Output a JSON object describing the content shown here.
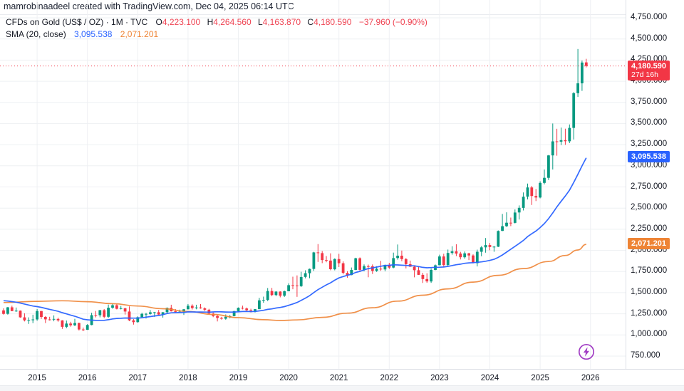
{
  "watermark": "mamrobinaadeel created with TradingView.com, Dec 04, 2025 06:14 UTC",
  "legend": {
    "symbol_title": "CFDs on Gold (US$ / OZ) · 1M · TVC",
    "open_label": "O",
    "open": "4,223.100",
    "high_label": "H",
    "high": "4,264.560",
    "low_label": "L",
    "low": "4,163.870",
    "close_label": "C",
    "close": "4,180.590",
    "change": "−37.960 (−0.90%)",
    "indicator_title": "SMA (20, close)",
    "sma_fast_value": "3,095.538",
    "sma_slow_value": "2,071.201"
  },
  "price_axis": {
    "labels": [
      "4,750.000",
      "4,500.000",
      "4,250.000",
      "4,000.000",
      "3,750.000",
      "3,500.000",
      "3,250.000",
      "3,000.000",
      "2,750.000",
      "2,500.000",
      "2,250.000",
      "2,000.000",
      "1,750.000",
      "1,500.000",
      "1,250.000",
      "1,000.000",
      "750.000"
    ],
    "last_price_label": "4,180.590",
    "countdown": "27d 16h",
    "sma_fast_label": "3,095.538",
    "sma_slow_label": "2,071.201"
  },
  "time_axis": {
    "years": [
      "2015",
      "2016",
      "2017",
      "2018",
      "2019",
      "2020",
      "2021",
      "2022",
      "2023",
      "2024",
      "2025",
      "2026"
    ]
  },
  "colors": {
    "up": "#089981",
    "down": "#f23645",
    "sma_fast": "#2962ff",
    "sma_slow": "#ee8435",
    "grid": "#eef0f3",
    "axis_text": "#131722",
    "badge_last": "#f23645",
    "badge_fast": "#2962ff",
    "badge_slow": "#ee8435",
    "flash_icon": "#a13dc4"
  },
  "chart_data": {
    "type": "candlestick",
    "symbol": "CFDs on Gold (US$ / OZ)",
    "interval": "1M",
    "exchange": "TVC",
    "start_month": "2014-05",
    "end_month": "2025-12",
    "last_price": 4180.59,
    "last_change": -37.96,
    "last_change_pct": -0.9,
    "y_axis": {
      "min": 750,
      "max": 4750,
      "step": 250
    },
    "x_axis_year_ticks": [
      2015,
      2016,
      2017,
      2018,
      2019,
      2020,
      2021,
      2022,
      2023,
      2024,
      2025,
      2026
    ],
    "grid": true,
    "price_line_style": "dotted",
    "ohlc": [
      [
        1291,
        1315,
        1241,
        1250
      ],
      [
        1250,
        1330,
        1240,
        1327
      ],
      [
        1327,
        1346,
        1281,
        1282
      ],
      [
        1282,
        1324,
        1273,
        1287
      ],
      [
        1287,
        1290,
        1204,
        1208
      ],
      [
        1208,
        1256,
        1160,
        1173
      ],
      [
        1173,
        1208,
        1131,
        1175
      ],
      [
        1175,
        1239,
        1140,
        1184
      ],
      [
        1184,
        1307,
        1168,
        1283
      ],
      [
        1283,
        1285,
        1190,
        1213
      ],
      [
        1213,
        1223,
        1141,
        1184
      ],
      [
        1184,
        1215,
        1170,
        1182
      ],
      [
        1182,
        1232,
        1162,
        1190
      ],
      [
        1190,
        1205,
        1157,
        1172
      ],
      [
        1172,
        1175,
        1072,
        1096
      ],
      [
        1096,
        1170,
        1080,
        1135
      ],
      [
        1135,
        1156,
        1098,
        1115
      ],
      [
        1115,
        1191,
        1104,
        1142
      ],
      [
        1142,
        1146,
        1052,
        1065
      ],
      [
        1065,
        1088,
        1046,
        1061
      ],
      [
        1061,
        1128,
        1060,
        1118
      ],
      [
        1118,
        1263,
        1115,
        1234
      ],
      [
        1234,
        1284,
        1208,
        1233
      ],
      [
        1233,
        1296,
        1208,
        1293
      ],
      [
        1293,
        1306,
        1199,
        1215
      ],
      [
        1215,
        1359,
        1201,
        1322
      ],
      [
        1322,
        1375,
        1310,
        1351
      ],
      [
        1351,
        1367,
        1302,
        1309
      ],
      [
        1309,
        1344,
        1302,
        1316
      ],
      [
        1316,
        1321,
        1241,
        1277
      ],
      [
        1277,
        1338,
        1163,
        1173
      ],
      [
        1173,
        1188,
        1122,
        1152
      ],
      [
        1152,
        1220,
        1146,
        1210
      ],
      [
        1210,
        1264,
        1205,
        1249
      ],
      [
        1249,
        1261,
        1195,
        1249
      ],
      [
        1249,
        1295,
        1240,
        1268
      ],
      [
        1268,
        1273,
        1214,
        1269
      ],
      [
        1269,
        1296,
        1236,
        1242
      ],
      [
        1242,
        1270,
        1205,
        1269
      ],
      [
        1269,
        1325,
        1251,
        1321
      ],
      [
        1321,
        1357,
        1277,
        1280
      ],
      [
        1280,
        1306,
        1261,
        1271
      ],
      [
        1271,
        1299,
        1263,
        1275
      ],
      [
        1275,
        1307,
        1236,
        1303
      ],
      [
        1303,
        1366,
        1302,
        1345
      ],
      [
        1345,
        1362,
        1301,
        1318
      ],
      [
        1318,
        1357,
        1303,
        1325
      ],
      [
        1325,
        1365,
        1310,
        1315
      ],
      [
        1315,
        1326,
        1282,
        1298
      ],
      [
        1298,
        1309,
        1247,
        1253
      ],
      [
        1253,
        1266,
        1211,
        1224
      ],
      [
        1224,
        1235,
        1160,
        1201
      ],
      [
        1201,
        1214,
        1181,
        1192
      ],
      [
        1192,
        1243,
        1180,
        1215
      ],
      [
        1215,
        1237,
        1196,
        1222
      ],
      [
        1222,
        1285,
        1221,
        1282
      ],
      [
        1282,
        1326,
        1277,
        1321
      ],
      [
        1321,
        1347,
        1302,
        1313
      ],
      [
        1313,
        1324,
        1280,
        1292
      ],
      [
        1292,
        1310,
        1266,
        1283
      ],
      [
        1283,
        1307,
        1266,
        1305
      ],
      [
        1305,
        1439,
        1305,
        1409
      ],
      [
        1409,
        1453,
        1381,
        1414
      ],
      [
        1414,
        1555,
        1400,
        1520
      ],
      [
        1520,
        1557,
        1459,
        1472
      ],
      [
        1472,
        1518,
        1458,
        1513
      ],
      [
        1513,
        1516,
        1445,
        1464
      ],
      [
        1464,
        1525,
        1450,
        1517
      ],
      [
        1517,
        1611,
        1516,
        1589
      ],
      [
        1589,
        1689,
        1541,
        1585
      ],
      [
        1585,
        1704,
        1451,
        1577
      ],
      [
        1577,
        1747,
        1568,
        1686
      ],
      [
        1686,
        1765,
        1670,
        1730
      ],
      [
        1730,
        1785,
        1671,
        1781
      ],
      [
        1781,
        1983,
        1757,
        1976
      ],
      [
        1976,
        2075,
        1863,
        1968
      ],
      [
        1968,
        1992,
        1849,
        1886
      ],
      [
        1886,
        1933,
        1860,
        1879
      ],
      [
        1879,
        1965,
        1765,
        1777
      ],
      [
        1777,
        1906,
        1764,
        1898
      ],
      [
        1898,
        1959,
        1803,
        1848
      ],
      [
        1848,
        1871,
        1717,
        1734
      ],
      [
        1734,
        1755,
        1677,
        1708
      ],
      [
        1708,
        1798,
        1706,
        1769
      ],
      [
        1769,
        1913,
        1766,
        1907
      ],
      [
        1907,
        1917,
        1750,
        1770
      ],
      [
        1770,
        1834,
        1752,
        1814
      ],
      [
        1814,
        1832,
        1682,
        1812
      ],
      [
        1812,
        1834,
        1721,
        1757
      ],
      [
        1757,
        1813,
        1746,
        1783
      ],
      [
        1783,
        1877,
        1759,
        1775
      ],
      [
        1775,
        1831,
        1753,
        1829
      ],
      [
        1829,
        1853,
        1780,
        1797
      ],
      [
        1797,
        1974,
        1788,
        1909
      ],
      [
        1909,
        2070,
        1890,
        1937
      ],
      [
        1937,
        1998,
        1872,
        1897
      ],
      [
        1897,
        1910,
        1787,
        1837
      ],
      [
        1837,
        1879,
        1805,
        1807
      ],
      [
        1807,
        1814,
        1681,
        1766
      ],
      [
        1766,
        1808,
        1710,
        1711
      ],
      [
        1711,
        1735,
        1615,
        1661
      ],
      [
        1661,
        1729,
        1617,
        1633
      ],
      [
        1633,
        1787,
        1616,
        1769
      ],
      [
        1769,
        1833,
        1765,
        1824
      ],
      [
        1824,
        1949,
        1823,
        1928
      ],
      [
        1928,
        1960,
        1804,
        1827
      ],
      [
        1827,
        2010,
        1809,
        1969
      ],
      [
        1969,
        2049,
        1949,
        1990
      ],
      [
        1990,
        2072,
        1932,
        1963
      ],
      [
        1963,
        1983,
        1893,
        1919
      ],
      [
        1919,
        1987,
        1902,
        1965
      ],
      [
        1965,
        1972,
        1885,
        1940
      ],
      [
        1940,
        1953,
        1847,
        1849
      ],
      [
        1849,
        2009,
        1810,
        1984
      ],
      [
        1984,
        2052,
        1931,
        2036
      ],
      [
        2036,
        2146,
        1973,
        2063
      ],
      [
        2063,
        2088,
        2001,
        2040
      ],
      [
        2040,
        2050,
        1984,
        2044
      ],
      [
        2044,
        2236,
        2039,
        2230
      ],
      [
        2230,
        2431,
        2228,
        2286
      ],
      [
        2286,
        2450,
        2277,
        2327
      ],
      [
        2327,
        2388,
        2287,
        2326
      ],
      [
        2326,
        2484,
        2319,
        2448
      ],
      [
        2448,
        2532,
        2365,
        2503
      ],
      [
        2503,
        2685,
        2472,
        2635
      ],
      [
        2635,
        2790,
        2603,
        2744
      ],
      [
        2744,
        2762,
        2537,
        2643
      ],
      [
        2643,
        2726,
        2583,
        2625
      ],
      [
        2625,
        2817,
        2615,
        2798
      ],
      [
        2798,
        2956,
        2780,
        2858
      ],
      [
        2858,
        3128,
        2832,
        3123
      ],
      [
        3123,
        3500,
        2956,
        3289
      ],
      [
        3289,
        3438,
        3120,
        3285
      ],
      [
        3285,
        3452,
        3245,
        3303
      ],
      [
        3303,
        3439,
        3248,
        3290
      ],
      [
        3290,
        3489,
        3268,
        3448
      ],
      [
        3448,
        3871,
        3311,
        3859
      ],
      [
        3859,
        4381,
        3815,
        3975
      ],
      [
        3975,
        4245,
        3886,
        4221
      ],
      [
        4223.1,
        4264.56,
        4163.87,
        4180.59
      ]
    ],
    "series": [
      {
        "name": "SMA fast (20)",
        "last_value": 3095.538,
        "window": 20,
        "backfill_mean": 1413
      },
      {
        "name": "SMA slow",
        "last_value": 2071.201,
        "points": [
          [
            0,
            1383
          ],
          [
            8,
            1398
          ],
          [
            14,
            1404
          ],
          [
            20,
            1393
          ],
          [
            26,
            1370
          ],
          [
            32,
            1342
          ],
          [
            38,
            1310
          ],
          [
            44,
            1278
          ],
          [
            50,
            1243
          ],
          [
            56,
            1205
          ],
          [
            62,
            1180
          ],
          [
            66,
            1171
          ],
          [
            70,
            1178
          ],
          [
            76,
            1208
          ],
          [
            82,
            1258
          ],
          [
            88,
            1322
          ],
          [
            94,
            1400
          ],
          [
            100,
            1470
          ],
          [
            106,
            1545
          ],
          [
            112,
            1625
          ],
          [
            118,
            1705
          ],
          [
            124,
            1785
          ],
          [
            130,
            1868
          ],
          [
            134,
            1940
          ],
          [
            137,
            2005
          ],
          [
            139,
            2071.2
          ]
        ]
      }
    ]
  }
}
